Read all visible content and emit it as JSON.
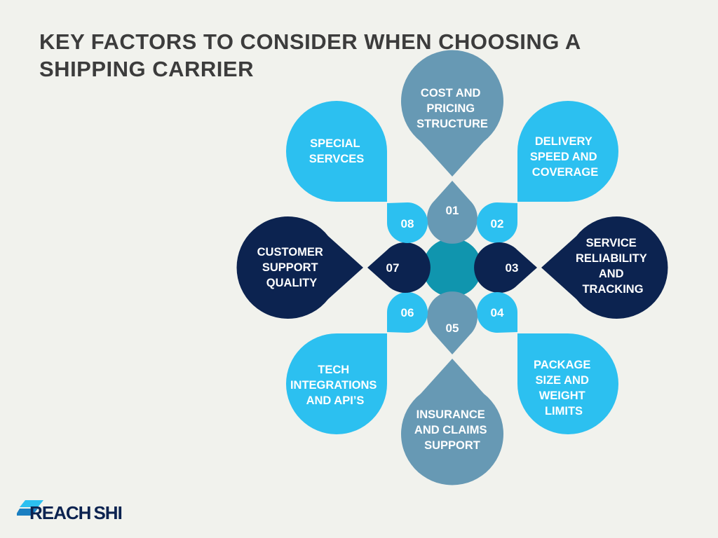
{
  "title": "KEY FACTORS TO CONSIDER WHEN CHOOSING A SHIPPING CARRIER",
  "colors": {
    "background": "#f1f2ed",
    "steel": "#6799b4",
    "light_blue": "#2cc0f0",
    "navy": "#0c2350",
    "center": "#1095ae",
    "title": "#3c3c3c"
  },
  "factors": [
    {
      "number": "01",
      "label": [
        "COST AND",
        "PRICING",
        "STRUCTURE"
      ]
    },
    {
      "number": "02",
      "label": [
        "DELIVERY",
        "SPEED AND",
        "COVERAGE"
      ]
    },
    {
      "number": "03",
      "label": [
        "SERVICE",
        "RELIABILITY",
        "AND",
        "TRACKING"
      ]
    },
    {
      "number": "04",
      "label": [
        "PACKAGE",
        "SIZE AND",
        "WEIGHT",
        "LIMITS"
      ]
    },
    {
      "number": "05",
      "label": [
        "INSURANCE",
        "AND CLAIMS",
        "SUPPORT"
      ]
    },
    {
      "number": "06",
      "label": [
        "TECH",
        "INTEGRATIONS",
        "AND API’S"
      ]
    },
    {
      "number": "07",
      "label": [
        "CUSTOMER",
        "SUPPORT",
        "QUALITY"
      ]
    },
    {
      "number": "08",
      "label": [
        "SPECIAL",
        "SERVCES"
      ]
    }
  ],
  "logo": {
    "part1": "REACH",
    "part2": "SHIP",
    "icon": "arrow-logo-icon"
  }
}
